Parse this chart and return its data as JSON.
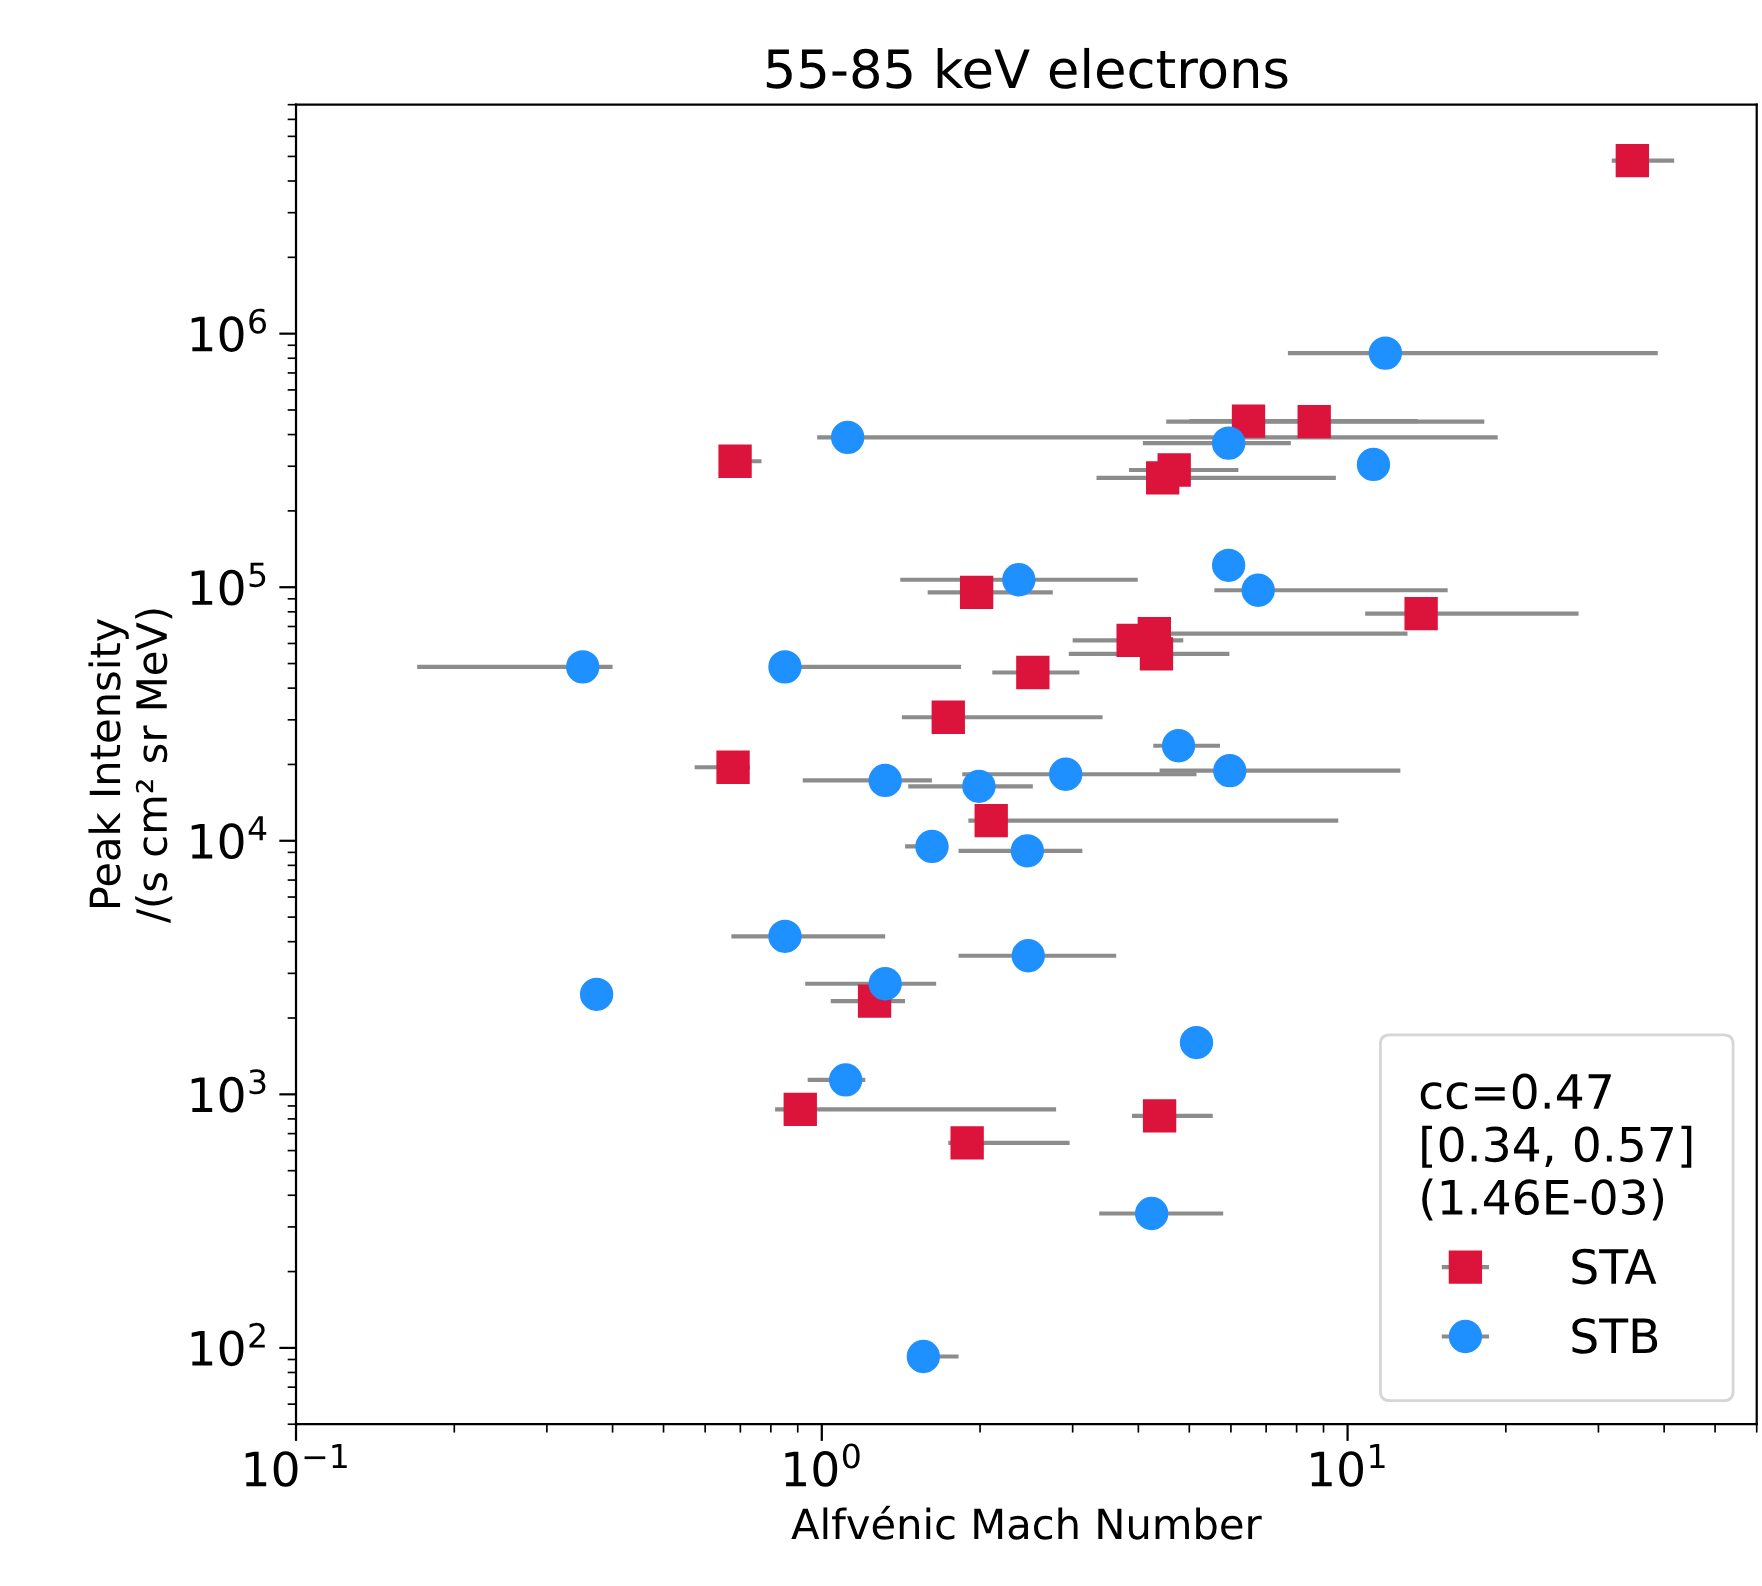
{
  "chart_data": {
    "type": "scatter",
    "title": "55-85 keV electrons",
    "xlabel": "Alfvénic Mach Number",
    "ylabel": "Peak Intensity\n/(s cm² sr MeV)",
    "legend_title": "cc=0.47\n[0.34, 0.57]\n(1.46E-03)",
    "legend": "bottom right",
    "log": "xy",
    "grid": false,
    "xlim": [
      0.1,
      60
    ],
    "ylim": [
      50,
      8000000
    ],
    "xticks": [
      {
        "value": 0.1,
        "label": "10$^{−1}$"
      },
      {
        "value": 1,
        "label": "10$^{0}$"
      },
      {
        "value": 10,
        "label": "10$^{1}$"
      }
    ],
    "yticks": [
      {
        "value": 100,
        "label": "10$^{2}$"
      },
      {
        "value": 1000,
        "label": "10$^{3}$"
      },
      {
        "value": 10000,
        "label": "10$^{4}$"
      },
      {
        "value": 100000,
        "label": "10$^{5}$"
      },
      {
        "value": 1000000,
        "label": "10$^{6}$"
      }
    ],
    "series": [
      {
        "name": "STA",
        "color": "#dc143c",
        "marker": "square",
        "x": [
          34.8,
          6.48,
          8.64,
          4.45,
          4.68,
          1.97,
          13.8,
          3.91,
          4.29,
          4.33,
          2.52,
          1.74,
          2.1,
          0.684,
          0.678,
          1.26,
          0.91,
          1.89,
          4.39
        ],
        "values": [
          4810000,
          452000,
          450000,
          270000,
          290000,
          95500,
          78700,
          61700,
          65600,
          54600,
          46100,
          30700,
          12000,
          314000,
          19500,
          2330,
          873,
          644,
          822
        ],
        "xerrors": [
          [
            31.8,
            41.8
          ],
          [
            5.0,
            13.6
          ],
          [
            4.52,
            18.2
          ],
          [
            3.33,
            9.5
          ],
          [
            3.84,
            6.2
          ],
          [
            1.59,
            2.75
          ],
          [
            10.8,
            27.5
          ],
          [
            3.0,
            4.87
          ],
          [
            4.19,
            13.0
          ],
          [
            2.95,
            5.96
          ],
          [
            2.11,
            3.09
          ],
          [
            1.42,
            3.42
          ],
          [
            1.9,
            9.6
          ],
          [
            0.644,
            0.768
          ],
          [
            0.573,
            0.73
          ],
          [
            1.04,
            1.44
          ],
          [
            0.815,
            2.79
          ],
          [
            1.74,
            2.96
          ],
          [
            3.89,
            5.54
          ]
        ]
      },
      {
        "name": "STB",
        "color": "#1e90ff",
        "marker": "circle",
        "x": [
          11.8,
          5.94,
          11.2,
          1.12,
          0.351,
          0.851,
          1.32,
          1.99,
          2.91,
          4.77,
          5.97,
          2.37,
          5.94,
          6.76,
          1.62,
          2.46,
          0.851,
          2.47,
          0.373,
          1.32,
          1.11,
          5.16,
          4.24,
          1.56
        ],
        "values": [
          838000,
          370000,
          305000,
          390000,
          48500,
          48500,
          17300,
          16400,
          18300,
          23700,
          18900,
          107000,
          122000,
          97300,
          9500,
          9130,
          4200,
          3520,
          2480,
          2730,
          1140,
          1600,
          339,
          92.5
        ],
        "xerrors": [
          [
            7.7,
            38.9
          ],
          [
            4.08,
            7.8
          ],
          null,
          [
            0.98,
            19.3
          ],
          [
            0.17,
            0.4
          ],
          [
            0.8,
            1.84
          ],
          [
            0.92,
            1.62
          ],
          [
            1.46,
            2.52
          ],
          [
            1.85,
            5.16
          ],
          [
            4.27,
            5.72
          ],
          [
            4.39,
            12.6
          ],
          [
            1.41,
            3.99
          ],
          null,
          [
            5.58,
            15.5
          ],
          [
            1.44,
            1.74
          ],
          [
            1.82,
            3.13
          ],
          [
            0.673,
            1.32
          ],
          [
            1.82,
            3.63
          ],
          null,
          [
            0.93,
            1.65
          ],
          [
            0.94,
            1.21
          ],
          null,
          [
            3.37,
            5.8
          ],
          [
            1.46,
            1.82
          ]
        ]
      }
    ]
  }
}
